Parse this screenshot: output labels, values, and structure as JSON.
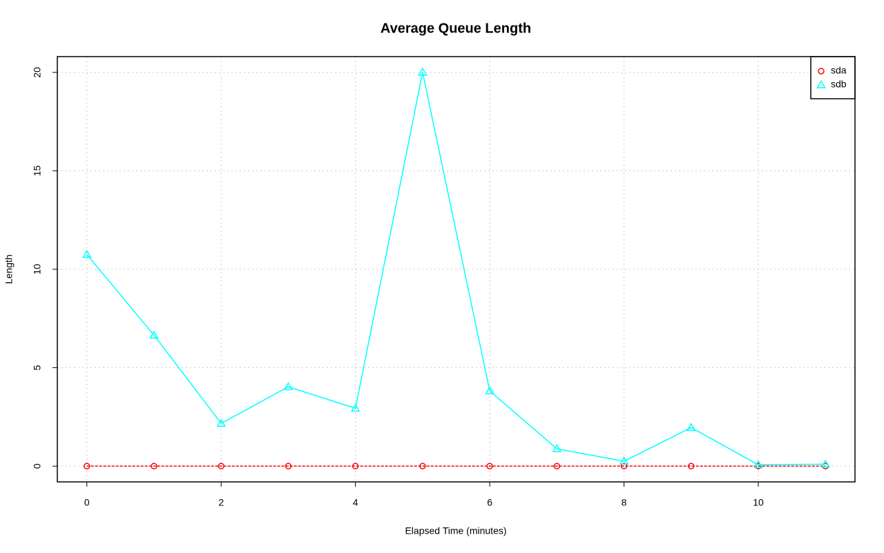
{
  "chart_data": {
    "type": "line",
    "title": "Average Queue Length",
    "x_label": "Elapsed Time (minutes)",
    "y_label": "Length",
    "x": [
      0,
      1,
      2,
      3,
      4,
      5,
      6,
      7,
      8,
      9,
      10,
      11
    ],
    "series": [
      {
        "name": "sda",
        "color": "#ff0000",
        "marker": "circle",
        "line_style": "dashed",
        "values": [
          0,
          0,
          0,
          0,
          0,
          0,
          0,
          0,
          0,
          0,
          0,
          0
        ]
      },
      {
        "name": "sdb",
        "color": "#00ffff",
        "marker": "triangle",
        "line_style": "solid",
        "values": [
          10.75,
          6.65,
          2.17,
          4.03,
          2.94,
          20,
          3.82,
          0.88,
          0.25,
          1.96,
          0.07,
          0.1
        ]
      }
    ],
    "xlim": [
      -0.44,
      11.44
    ],
    "xticks": [
      0,
      2,
      4,
      6,
      8,
      10
    ],
    "ylim": [
      -0.8,
      20.8
    ],
    "yticks": [
      0,
      5,
      10,
      15,
      20
    ],
    "grid": true,
    "legend": "topright"
  }
}
